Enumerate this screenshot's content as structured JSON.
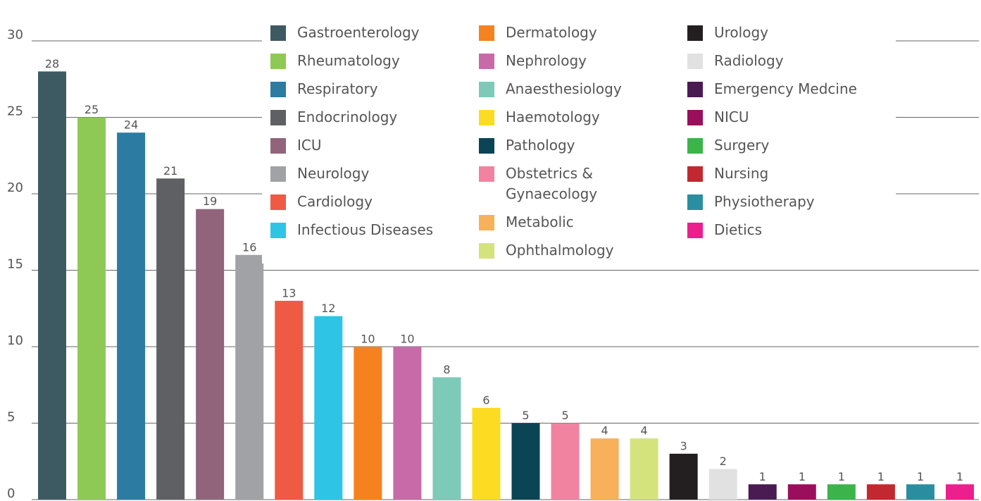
{
  "chart_data": {
    "type": "bar",
    "categories": [
      "Gastroenterology",
      "Rheumatology",
      "Respiratory",
      "Endocrinology",
      "ICU",
      "Neurology",
      "Cardiology",
      "Infectious Diseases",
      "Dermatology",
      "Nephrology",
      "Anaesthesiology",
      "Haemotology",
      "Pathology",
      "Obstetrics & Gynaecology",
      "Metabolic",
      "Ophthalmology",
      "Urology",
      "Radiology",
      "Emergency Medcine",
      "NICU",
      "Surgery",
      "Nursing",
      "Physiotherapy",
      "Dietics"
    ],
    "values": [
      28,
      25,
      24,
      21,
      19,
      16,
      13,
      12,
      10,
      10,
      8,
      6,
      5,
      5,
      4,
      4,
      3,
      2,
      1,
      1,
      1,
      1,
      1,
      1
    ],
    "colors": [
      "#3d5a63",
      "#8fc955",
      "#2b7ba3",
      "#5f6064",
      "#91647c",
      "#a0a2a5",
      "#ef5a44",
      "#2ec4e6",
      "#f5821f",
      "#c96aa8",
      "#7ecab9",
      "#fbdc23",
      "#0b4455",
      "#f183a0",
      "#f9b05a",
      "#d4e37c",
      "#231f20",
      "#e1e1e2",
      "#4a1a52",
      "#9a0f5c",
      "#3cb44a",
      "#c2282f",
      "#2a8ea0",
      "#ec1f8c"
    ],
    "ylim": [
      0,
      30
    ],
    "yticks": [
      0,
      5,
      10,
      15,
      20,
      25,
      30
    ],
    "grid": true,
    "legend_columns": 3
  }
}
